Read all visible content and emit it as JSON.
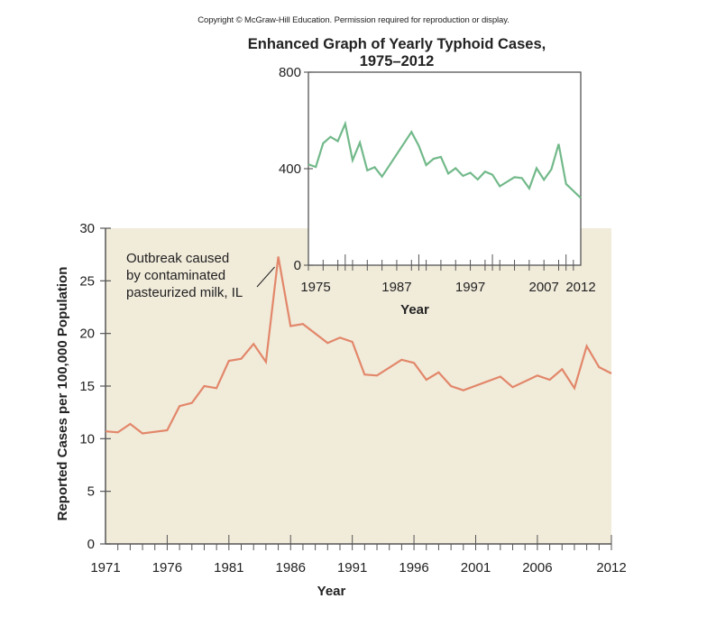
{
  "copyright": "Copyright © McGraw-Hill Education. Permission required for reproduction or display.",
  "colors": {
    "background_panel": "#f1ebda",
    "main_line": "#e2876a",
    "inset_line": "#72b98a",
    "axis": "#555555",
    "text": "#222222"
  },
  "chart_data": [
    {
      "type": "line",
      "title": "",
      "xlabel": "Year",
      "ylabel": "Reported Cases per 100,000 Population",
      "xlim": [
        1971,
        2012
      ],
      "ylim": [
        0,
        30
      ],
      "yticks": [
        0,
        5,
        10,
        15,
        20,
        25,
        30
      ],
      "xticks": [
        1971,
        1976,
        1981,
        1986,
        1991,
        1996,
        2001,
        2006,
        2012
      ],
      "xtick_labels": [
        "1971",
        "1976",
        "1981",
        "1986",
        "1991",
        "1996",
        "2001",
        "2006",
        "2012"
      ],
      "grid": false,
      "annotation": {
        "lines": [
          "Outbreak caused",
          "by contaminated",
          "pasteurized milk, IL"
        ],
        "points_to_year": 1985
      },
      "series": [
        {
          "name": "Reported cases per 100,000",
          "x": [
            1971,
            1972,
            1973,
            1974,
            1976,
            1977,
            1978,
            1979,
            1980,
            1981,
            1982,
            1983,
            1984,
            1985,
            1986,
            1987,
            1989,
            1990,
            1991,
            1992,
            1993,
            1995,
            1996,
            1997,
            1998,
            1999,
            2000,
            2003,
            2004,
            2006,
            2007,
            2008,
            2009,
            2010,
            2011,
            2012
          ],
          "y": [
            10.7,
            10.6,
            11.4,
            10.5,
            10.8,
            13.1,
            13.4,
            15.0,
            14.8,
            17.4,
            17.6,
            19.0,
            17.3,
            27.3,
            20.7,
            20.9,
            19.1,
            19.6,
            19.2,
            16.1,
            16.0,
            17.5,
            17.2,
            15.6,
            16.3,
            15.0,
            14.6,
            15.9,
            14.9,
            16.0,
            15.6,
            16.6,
            14.8,
            18.8,
            16.8,
            16.2
          ]
        }
      ]
    },
    {
      "type": "line",
      "title": "Enhanced Graph of Yearly Typhoid Cases,",
      "subtitle": "1975–2012",
      "xlabel": "Year",
      "ylabel": "",
      "xlim": [
        1975,
        2012
      ],
      "ylim": [
        0,
        800
      ],
      "yticks": [
        0,
        400,
        800
      ],
      "xticks": [
        1975,
        1987,
        1997,
        2007,
        2012
      ],
      "xtick_labels": [
        "1975",
        "1987",
        "1997",
        "2007",
        "2012"
      ],
      "grid": false,
      "series": [
        {
          "name": "Yearly typhoid cases",
          "x": [
            1975,
            1976,
            1977,
            1978,
            1979,
            1980,
            1981,
            1982,
            1983,
            1984,
            1985,
            1989,
            1990,
            1991,
            1992,
            1993,
            1994,
            1995,
            1996,
            1997,
            1998,
            1999,
            2000,
            2001,
            2003,
            2004,
            2005,
            2006,
            2007,
            2008,
            2009,
            2010,
            2012
          ],
          "y": [
            418,
            407,
            505,
            532,
            514,
            586,
            435,
            508,
            393,
            406,
            367,
            552,
            495,
            415,
            441,
            449,
            380,
            402,
            370,
            383,
            355,
            388,
            375,
            327,
            365,
            361,
            318,
            402,
            354,
            397,
            502,
            337,
            279
          ]
        }
      ]
    }
  ]
}
